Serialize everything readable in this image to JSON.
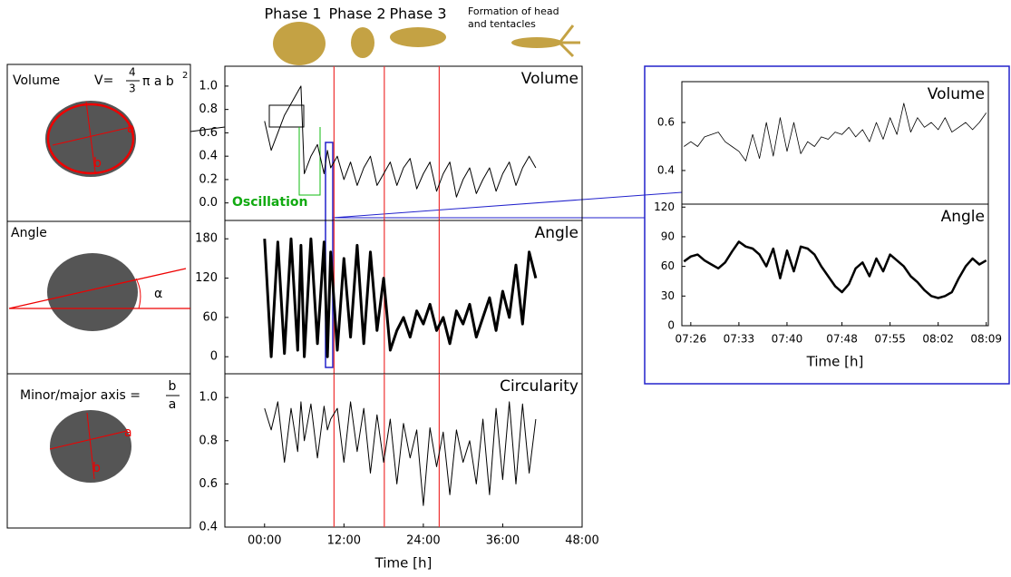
{
  "phases": [
    "Phase 1",
    "Phase 2",
    "Phase 3"
  ],
  "head_note": [
    "Formation of head",
    "and tentacles"
  ],
  "panels": {
    "volume": {
      "label": "Volume",
      "lhs": "V=",
      "num": "4",
      "den": "3",
      "rest": "π a b",
      "sup": "2"
    },
    "angle": {
      "label": "Angle",
      "symbol": "α"
    },
    "ratio": {
      "label": "Minor/major axis =",
      "num": "b",
      "den": "a"
    },
    "axis_a": "a",
    "axis_b": "b"
  },
  "oscillation": "Oscillation",
  "chart_data": [
    {
      "type": "line",
      "title": "Volume",
      "color": "#000000",
      "xlim": [
        -6,
        48
      ],
      "ylim": [
        -0.15,
        1.17
      ],
      "yticks": [
        {
          "value": 0,
          "label": "0.0"
        },
        0.2,
        0.4,
        0.6,
        0.8,
        {
          "value": 1,
          "label": "1.0"
        }
      ],
      "vlines": [
        10.5,
        18.1,
        26.4
      ],
      "x": [
        0,
        1,
        2,
        3,
        4,
        5,
        5.5,
        6,
        7,
        8,
        9,
        9.5,
        10,
        11,
        12,
        13,
        14,
        15,
        16,
        17,
        18,
        19,
        20,
        21,
        22,
        23,
        24,
        25,
        26,
        27,
        28,
        29,
        30,
        31,
        32,
        33,
        34,
        35,
        36,
        37,
        38,
        39,
        40,
        41
      ],
      "values": [
        0.7,
        0.45,
        0.6,
        0.75,
        0.85,
        0.95,
        1.0,
        0.25,
        0.4,
        0.5,
        0.25,
        0.45,
        0.3,
        0.4,
        0.2,
        0.35,
        0.15,
        0.3,
        0.4,
        0.15,
        0.25,
        0.35,
        0.15,
        0.3,
        0.38,
        0.12,
        0.25,
        0.35,
        0.1,
        0.25,
        0.35,
        0.05,
        0.2,
        0.3,
        0.08,
        0.2,
        0.3,
        0.1,
        0.25,
        0.35,
        0.15,
        0.3,
        0.4,
        0.3
      ]
    },
    {
      "type": "line",
      "title": "Angle",
      "color": "#000000",
      "xlim": [
        -6,
        48
      ],
      "ylim": [
        -26,
        208
      ],
      "yticks": [
        0,
        60,
        120,
        180
      ],
      "vlines": [
        10.5,
        18.1,
        26.4
      ],
      "x": [
        0,
        1,
        2,
        3,
        4,
        5,
        5.5,
        6,
        7,
        8,
        9,
        9.5,
        10,
        11,
        12,
        13,
        14,
        15,
        16,
        17,
        18,
        19,
        20,
        21,
        22,
        23,
        24,
        25,
        26,
        27,
        28,
        29,
        30,
        31,
        32,
        33,
        34,
        35,
        36,
        37,
        38,
        39,
        40,
        41
      ],
      "values": [
        180,
        0,
        175,
        5,
        180,
        10,
        170,
        0,
        180,
        20,
        175,
        0,
        160,
        10,
        150,
        30,
        170,
        20,
        160,
        40,
        120,
        10,
        40,
        60,
        30,
        70,
        50,
        80,
        40,
        60,
        20,
        70,
        50,
        80,
        30,
        60,
        90,
        40,
        100,
        60,
        140,
        50,
        160,
        120
      ]
    },
    {
      "type": "line",
      "title": "Circularity",
      "color": "#000000",
      "xlim": [
        -6,
        48
      ],
      "ylim": [
        0.4,
        1.11
      ],
      "yticks": [
        0.4,
        0.6,
        0.8,
        {
          "value": 1,
          "label": "1.0"
        }
      ],
      "xticks": [
        {
          "value": 0,
          "label": "00:00"
        },
        {
          "value": 12,
          "label": "12:00"
        },
        {
          "value": 24,
          "label": "24:00"
        },
        {
          "value": 36,
          "label": "36:00"
        },
        {
          "value": 48,
          "label": "48:00"
        }
      ],
      "xlabel": "Time [h]",
      "vlines": [
        10.5,
        18.1,
        26.4
      ],
      "x": [
        0,
        1,
        2,
        3,
        4,
        5,
        5.5,
        6,
        7,
        8,
        9,
        9.5,
        10,
        11,
        12,
        13,
        14,
        15,
        16,
        17,
        18,
        19,
        20,
        21,
        22,
        23,
        24,
        25,
        26,
        27,
        28,
        29,
        30,
        31,
        32,
        33,
        34,
        35,
        36,
        37,
        38,
        39,
        40,
        41
      ],
      "values": [
        0.95,
        0.85,
        0.98,
        0.7,
        0.95,
        0.75,
        0.98,
        0.8,
        0.97,
        0.72,
        0.96,
        0.85,
        0.9,
        0.95,
        0.7,
        0.98,
        0.75,
        0.95,
        0.65,
        0.92,
        0.7,
        0.9,
        0.6,
        0.88,
        0.72,
        0.85,
        0.5,
        0.86,
        0.68,
        0.84,
        0.55,
        0.85,
        0.7,
        0.8,
        0.6,
        0.9,
        0.55,
        0.95,
        0.62,
        0.98,
        0.6,
        0.97,
        0.65,
        0.9
      ]
    },
    {
      "type": "line",
      "title": "Volume",
      "color": "#000000",
      "xlim": [
        444.7,
        489.3
      ],
      "ylim": [
        0.26,
        0.77
      ],
      "yticks": [
        0.4,
        0.6
      ],
      "x": [
        445,
        446,
        447,
        448,
        449,
        450,
        451,
        452,
        453,
        454,
        455,
        456,
        457,
        458,
        459,
        460,
        461,
        462,
        463,
        464,
        465,
        466,
        467,
        468,
        469,
        470,
        471,
        472,
        473,
        474,
        475,
        476,
        477,
        478,
        479,
        480,
        481,
        482,
        483,
        484,
        485,
        486,
        487,
        488,
        489
      ],
      "values": [
        0.5,
        0.52,
        0.5,
        0.54,
        0.55,
        0.56,
        0.52,
        0.5,
        0.48,
        0.44,
        0.55,
        0.45,
        0.6,
        0.46,
        0.62,
        0.48,
        0.6,
        0.47,
        0.52,
        0.5,
        0.54,
        0.53,
        0.56,
        0.55,
        0.58,
        0.54,
        0.57,
        0.52,
        0.6,
        0.53,
        0.62,
        0.55,
        0.68,
        0.56,
        0.62,
        0.58,
        0.6,
        0.57,
        0.62,
        0.56,
        0.58,
        0.6,
        0.57,
        0.6,
        0.64
      ]
    },
    {
      "type": "line",
      "title": "Angle",
      "color": "#000000",
      "xlim": [
        444.7,
        489.3
      ],
      "ylim": [
        0,
        123
      ],
      "yticks": [
        0,
        30,
        60,
        90,
        120
      ],
      "xticks": [
        {
          "value": 446,
          "label": "07:26"
        },
        {
          "value": 453,
          "label": "07:33"
        },
        {
          "value": 460,
          "label": "07:40"
        },
        {
          "value": 468,
          "label": "07:48"
        },
        {
          "value": 475,
          "label": "07:55"
        },
        {
          "value": 482,
          "label": "08:02"
        },
        {
          "value": 489,
          "label": "08:09"
        }
      ],
      "xlabel": "Time [h]",
      "x": [
        445,
        446,
        447,
        448,
        449,
        450,
        451,
        452,
        453,
        454,
        455,
        456,
        457,
        458,
        459,
        460,
        461,
        462,
        463,
        464,
        465,
        466,
        467,
        468,
        469,
        470,
        471,
        472,
        473,
        474,
        475,
        476,
        477,
        478,
        479,
        480,
        481,
        482,
        483,
        484,
        485,
        486,
        487,
        488,
        489
      ],
      "values": [
        65,
        70,
        72,
        66,
        62,
        58,
        64,
        75,
        85,
        80,
        78,
        72,
        60,
        78,
        48,
        76,
        55,
        80,
        78,
        72,
        60,
        50,
        40,
        34,
        42,
        58,
        64,
        50,
        68,
        55,
        72,
        66,
        60,
        50,
        44,
        36,
        30,
        28,
        30,
        34,
        48,
        60,
        68,
        62,
        66
      ]
    }
  ]
}
